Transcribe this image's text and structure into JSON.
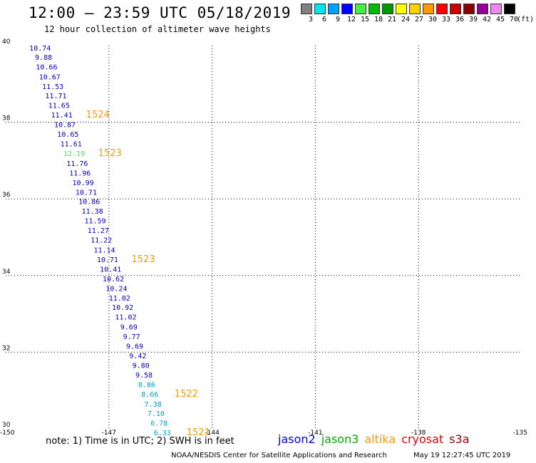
{
  "title": "12:00 – 23:59 UTC 05/18/2019",
  "subtitle": "12 hour collection of altimeter wave heights",
  "scale": {
    "unit": "(ft)",
    "bins": [
      {
        "label": "3",
        "color": "#808080"
      },
      {
        "label": "6",
        "color": "#00e5ee"
      },
      {
        "label": "9",
        "color": "#00a0ff"
      },
      {
        "label": "12",
        "color": "#0000ff"
      },
      {
        "label": "15",
        "color": "#44ee44"
      },
      {
        "label": "18",
        "color": "#00bb00"
      },
      {
        "label": "21",
        "color": "#009900"
      },
      {
        "label": "24",
        "color": "#ffff00"
      },
      {
        "label": "27",
        "color": "#ffd000"
      },
      {
        "label": "30",
        "color": "#ff9900"
      },
      {
        "label": "33",
        "color": "#ff0000"
      },
      {
        "label": "36",
        "color": "#cc0000"
      },
      {
        "label": "39",
        "color": "#880000"
      },
      {
        "label": "42",
        "color": "#990099"
      },
      {
        "label": "45",
        "color": "#ee88ee"
      },
      {
        "label": "70",
        "color": "#000000"
      }
    ]
  },
  "map": {
    "lon_range": [
      -150,
      -135
    ],
    "lat_range": [
      30,
      40
    ],
    "lon_ticks": [
      "-150",
      "-147",
      "-144",
      "-141",
      "-138",
      "-135"
    ],
    "lat_ticks": [
      "30",
      "32",
      "34",
      "36",
      "38",
      "40"
    ],
    "grid_lons": [
      -147,
      -144,
      -141,
      -138
    ],
    "grid_lats": [
      32,
      34,
      36,
      38
    ]
  },
  "observations": [
    {
      "v": "10.74",
      "lat": 39.87,
      "lon": -149.0,
      "c": "#0000c8"
    },
    {
      "v": "9.88",
      "lat": 39.63,
      "lon": -148.9,
      "c": "#0000c8"
    },
    {
      "v": "10.66",
      "lat": 39.38,
      "lon": -148.81,
      "c": "#0000c8"
    },
    {
      "v": "10.67",
      "lat": 39.12,
      "lon": -148.72,
      "c": "#0000c8"
    },
    {
      "v": "11.53",
      "lat": 38.87,
      "lon": -148.63,
      "c": "#0000c8"
    },
    {
      "v": "11.71",
      "lat": 38.62,
      "lon": -148.54,
      "c": "#0000c8"
    },
    {
      "v": "11.65",
      "lat": 38.37,
      "lon": -148.45,
      "c": "#0000c8"
    },
    {
      "v": "11.41",
      "lat": 38.12,
      "lon": -148.37,
      "c": "#0000c8"
    },
    {
      "v": "10.87",
      "lat": 37.87,
      "lon": -148.28,
      "c": "#0000c8"
    },
    {
      "v": "10.65",
      "lat": 37.62,
      "lon": -148.19,
      "c": "#0000c8"
    },
    {
      "v": "11.61",
      "lat": 37.37,
      "lon": -148.1,
      "c": "#0000c8"
    },
    {
      "v": "12.19",
      "lat": 37.12,
      "lon": -148.01,
      "c": "#44ee44"
    },
    {
      "v": "11.76",
      "lat": 36.86,
      "lon": -147.92,
      "c": "#0000c8"
    },
    {
      "v": "11.96",
      "lat": 36.61,
      "lon": -147.84,
      "c": "#0000c8"
    },
    {
      "v": "10.99",
      "lat": 36.36,
      "lon": -147.75,
      "c": "#0000c8"
    },
    {
      "v": "10.71",
      "lat": 36.11,
      "lon": -147.66,
      "c": "#0000c8"
    },
    {
      "v": "10.86",
      "lat": 35.86,
      "lon": -147.57,
      "c": "#0000c8"
    },
    {
      "v": "11.38",
      "lat": 35.61,
      "lon": -147.48,
      "c": "#0000c8"
    },
    {
      "v": "11.59",
      "lat": 35.36,
      "lon": -147.4,
      "c": "#0000c8"
    },
    {
      "v": "11.27",
      "lat": 35.11,
      "lon": -147.31,
      "c": "#0000c8"
    },
    {
      "v": "11.22",
      "lat": 34.86,
      "lon": -147.22,
      "c": "#0000c8"
    },
    {
      "v": "11.14",
      "lat": 34.6,
      "lon": -147.13,
      "c": "#0000c8"
    },
    {
      "v": "10.71",
      "lat": 34.35,
      "lon": -147.04,
      "c": "#0000c8"
    },
    {
      "v": "10.41",
      "lat": 34.1,
      "lon": -146.95,
      "c": "#0000c8"
    },
    {
      "v": "10.62",
      "lat": 33.85,
      "lon": -146.87,
      "c": "#0000c8"
    },
    {
      "v": "10.24",
      "lat": 33.6,
      "lon": -146.78,
      "c": "#0000c8"
    },
    {
      "v": "11.02",
      "lat": 33.35,
      "lon": -146.69,
      "c": "#0000c8"
    },
    {
      "v": "10.92",
      "lat": 33.1,
      "lon": -146.6,
      "c": "#0000c8"
    },
    {
      "v": "11.02",
      "lat": 32.85,
      "lon": -146.51,
      "c": "#0000c8"
    },
    {
      "v": "9.69",
      "lat": 32.59,
      "lon": -146.42,
      "c": "#0000c8"
    },
    {
      "v": "9.77",
      "lat": 32.34,
      "lon": -146.34,
      "c": "#0000c8"
    },
    {
      "v": "9.69",
      "lat": 32.09,
      "lon": -146.25,
      "c": "#0000c8"
    },
    {
      "v": "9.42",
      "lat": 31.84,
      "lon": -146.16,
      "c": "#0000c8"
    },
    {
      "v": "9.80",
      "lat": 31.59,
      "lon": -146.07,
      "c": "#0000c8"
    },
    {
      "v": "9.58",
      "lat": 31.34,
      "lon": -145.98,
      "c": "#0000c8"
    },
    {
      "v": "8.86",
      "lat": 31.09,
      "lon": -145.9,
      "c": "#00a0c8"
    },
    {
      "v": "8.66",
      "lat": 30.84,
      "lon": -145.81,
      "c": "#00a0c8"
    },
    {
      "v": "7.38",
      "lat": 30.58,
      "lon": -145.72,
      "c": "#00a0c8"
    },
    {
      "v": "7.10",
      "lat": 30.33,
      "lon": -145.63,
      "c": "#00a0c8"
    },
    {
      "v": "6.78",
      "lat": 30.08,
      "lon": -145.54,
      "c": "#00a0c8"
    },
    {
      "v": "6.33",
      "lat": 29.83,
      "lon": -145.45,
      "c": "#00a0c8"
    }
  ],
  "cycles": [
    {
      "label": "1524",
      "lat": 38.12,
      "lon": -147.32
    },
    {
      "label": "1523",
      "lat": 37.12,
      "lon": -146.97
    },
    {
      "label": "1523",
      "lat": 34.35,
      "lon": -146.0
    },
    {
      "label": "1522",
      "lat": 30.84,
      "lon": -144.75
    },
    {
      "label": "1521",
      "lat": 29.83,
      "lon": -144.4
    }
  ],
  "note": "note: 1) Time is in UTC; 2) SWH is in feet",
  "satellites": [
    {
      "name": "jason2",
      "color": "#0000ee"
    },
    {
      "name": "jason3",
      "color": "#00aa00"
    },
    {
      "name": "altika",
      "color": "#f59a00"
    },
    {
      "name": "cryosat",
      "color": "#ee0000"
    },
    {
      "name": "s3a",
      "color": "#990000"
    }
  ],
  "credit": "NOAA/NESDIS Center for Satellite Applications and Research",
  "timestamp": "May 19 12:27:45 UTC 2019"
}
